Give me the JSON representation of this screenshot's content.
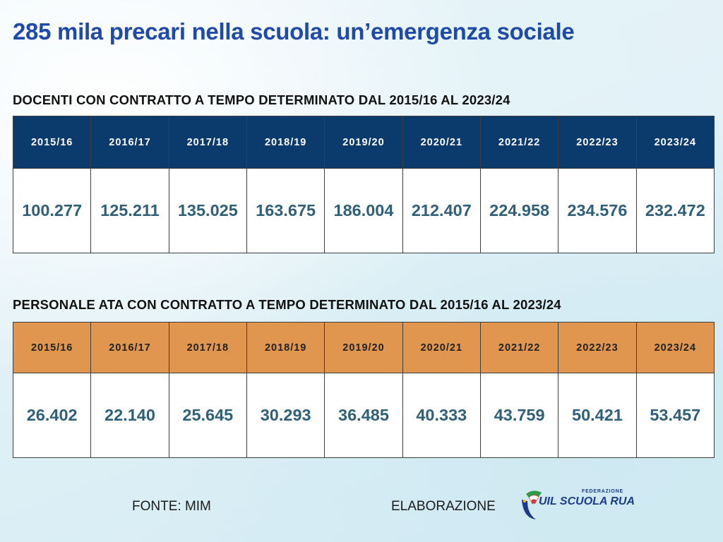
{
  "title": "285 mila precari nella scuola: un’emergenza sociale",
  "chart_data": [
    {
      "type": "table",
      "title": "DOCENTI CON CONTRATTO A TEMPO DETERMINATO DAL 2015/16 AL 2023/24",
      "categories": [
        "2015/16",
        "2016/17",
        "2017/18",
        "2018/19",
        "2019/20",
        "2020/21",
        "2021/22",
        "2022/23",
        "2023/24"
      ],
      "values": [
        "100.277",
        "125.211",
        "135.025",
        "163.675",
        "186.004",
        "212.407",
        "224.958",
        "234.576",
        "232.472"
      ],
      "header_color": "#0b3a6c"
    },
    {
      "type": "table",
      "title": "PERSONALE ATA CON CONTRATTO A TEMPO DETERMINATO DAL 2015/16 AL 2023/24",
      "categories": [
        "2015/16",
        "2016/17",
        "2017/18",
        "2018/19",
        "2019/20",
        "2020/21",
        "2021/22",
        "2022/23",
        "2023/24"
      ],
      "values": [
        "26.402",
        "22.140",
        "25.645",
        "30.293",
        "36.485",
        "40.333",
        "43.759",
        "50.421",
        "53.457"
      ],
      "header_color": "#e0964f"
    }
  ],
  "footer": {
    "source": "FONTE: MIM",
    "elaboration": "ELABORAZIONE",
    "logo_small": "FEDERAZIONE",
    "logo_big": "UIL SCUOLA RUA"
  },
  "colors": {
    "title": "#1f4aa8",
    "value_text": "#2f6078"
  }
}
